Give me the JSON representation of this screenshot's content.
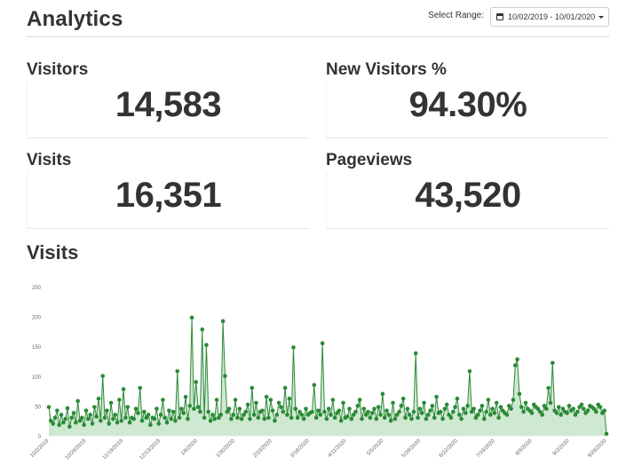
{
  "header": {
    "title": "Analytics",
    "range_label": "Select Range:",
    "range_value": "10/02/2019 - 10/01/2020"
  },
  "stats": {
    "visitors": {
      "label": "Visitors",
      "value": "14,583"
    },
    "new_visitors": {
      "label": "New Visitors %",
      "value": "94.30%"
    },
    "visits": {
      "label": "Visits",
      "value": "16,351"
    },
    "pageviews": {
      "label": "Pageviews",
      "value": "43,520"
    }
  },
  "visits_section": {
    "title": "Visits"
  },
  "colors": {
    "line": "#2e8b3a",
    "fill": "#cfe8d2",
    "point": "#2a8a35"
  },
  "chart_data": {
    "type": "line",
    "ylim": [
      0,
      250
    ],
    "yticks": [
      "0",
      "50",
      "100",
      "150",
      "200",
      "250"
    ],
    "xticks": [
      "10/2/2019",
      "10/26/2019",
      "11/19/2019",
      "12/13/2019",
      "1/6/2020",
      "1/30/2020",
      "2/23/2020",
      "3/18/2020",
      "4/11/2020",
      "5/5/2020",
      "5/29/2020",
      "6/22/2020",
      "7/16/2020",
      "8/9/2020",
      "9/2/2020",
      "9/26/2020"
    ],
    "series": [
      {
        "values": [
          48,
          25,
          20,
          30,
          42,
          18,
          35,
          22,
          28,
          46,
          15,
          30,
          38,
          22,
          58,
          25,
          30,
          18,
          42,
          28,
          35,
          20,
          48,
          32,
          62,
          25,
          100,
          30,
          42,
          20,
          55,
          28,
          35,
          22,
          60,
          25,
          78,
          30,
          48,
          22,
          30,
          28,
          45,
          38,
          80,
          25,
          40,
          30,
          35,
          18,
          30,
          28,
          45,
          20,
          35,
          60,
          30,
          22,
          42,
          28,
          40,
          25,
          108,
          30,
          45,
          38,
          65,
          28,
          50,
          198,
          45,
          90,
          48,
          40,
          178,
          30,
          152,
          40,
          25,
          35,
          28,
          60,
          30,
          35,
          192,
          100,
          40,
          45,
          28,
          35,
          60,
          30,
          45,
          28,
          35,
          40,
          52,
          28,
          80,
          35,
          55,
          30,
          40,
          42,
          28,
          65,
          30,
          60,
          42,
          25,
          35,
          55,
          48,
          40,
          80,
          35,
          62,
          30,
          148,
          45,
          30,
          40,
          35,
          28,
          45,
          35,
          38,
          40,
          85,
          30,
          42,
          35,
          155,
          40,
          28,
          45,
          35,
          60,
          30,
          38,
          42,
          25,
          55,
          30,
          32,
          45,
          28,
          35,
          40,
          50,
          60,
          28,
          45,
          35,
          40,
          30,
          38,
          45,
          28,
          48,
          35,
          70,
          30,
          42,
          35,
          25,
          55,
          28,
          35,
          40,
          50,
          62,
          30,
          45,
          35,
          28,
          40,
          138,
          30,
          45,
          38,
          55,
          28,
          35,
          42,
          50,
          30,
          65,
          38,
          40,
          28,
          45,
          52,
          35,
          30,
          40,
          48,
          62,
          35,
          28,
          45,
          38,
          50,
          108,
          40,
          45,
          30,
          35,
          42,
          50,
          28,
          40,
          60,
          35,
          45,
          38,
          55,
          30,
          48,
          42,
          38,
          35,
          50,
          45,
          60,
          118,
          128,
          70,
          48,
          40,
          55,
          45,
          42,
          38,
          52,
          48,
          45,
          40,
          35,
          50,
          45,
          80,
          55,
          122,
          42,
          38,
          48,
          35,
          45,
          40,
          38,
          50,
          42,
          45,
          35,
          40,
          48,
          52,
          45,
          38,
          42,
          50,
          48,
          45,
          40,
          52,
          48,
          38,
          42,
          3
        ]
      }
    ]
  }
}
